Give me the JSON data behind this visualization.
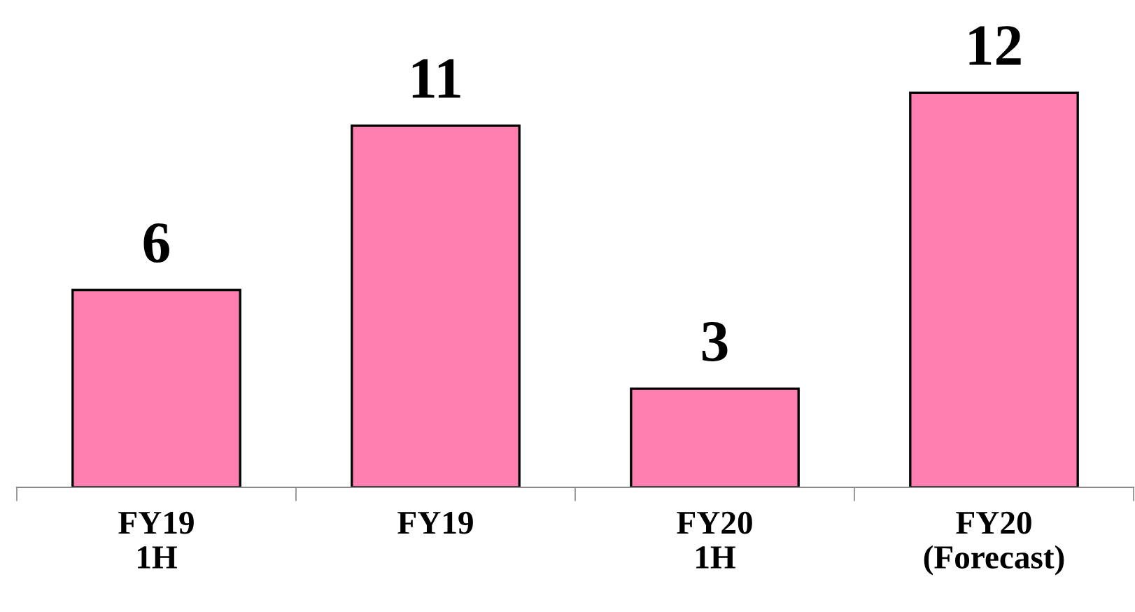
{
  "chart_data": {
    "type": "bar",
    "categories": [
      "FY19\n1H",
      "FY19",
      "FY20\n1H",
      "FY20\n(Forecast)"
    ],
    "values": [
      6,
      11,
      3,
      12
    ],
    "color": "#ff7fb0",
    "data_labels": true,
    "grid": false,
    "legend": false
  }
}
